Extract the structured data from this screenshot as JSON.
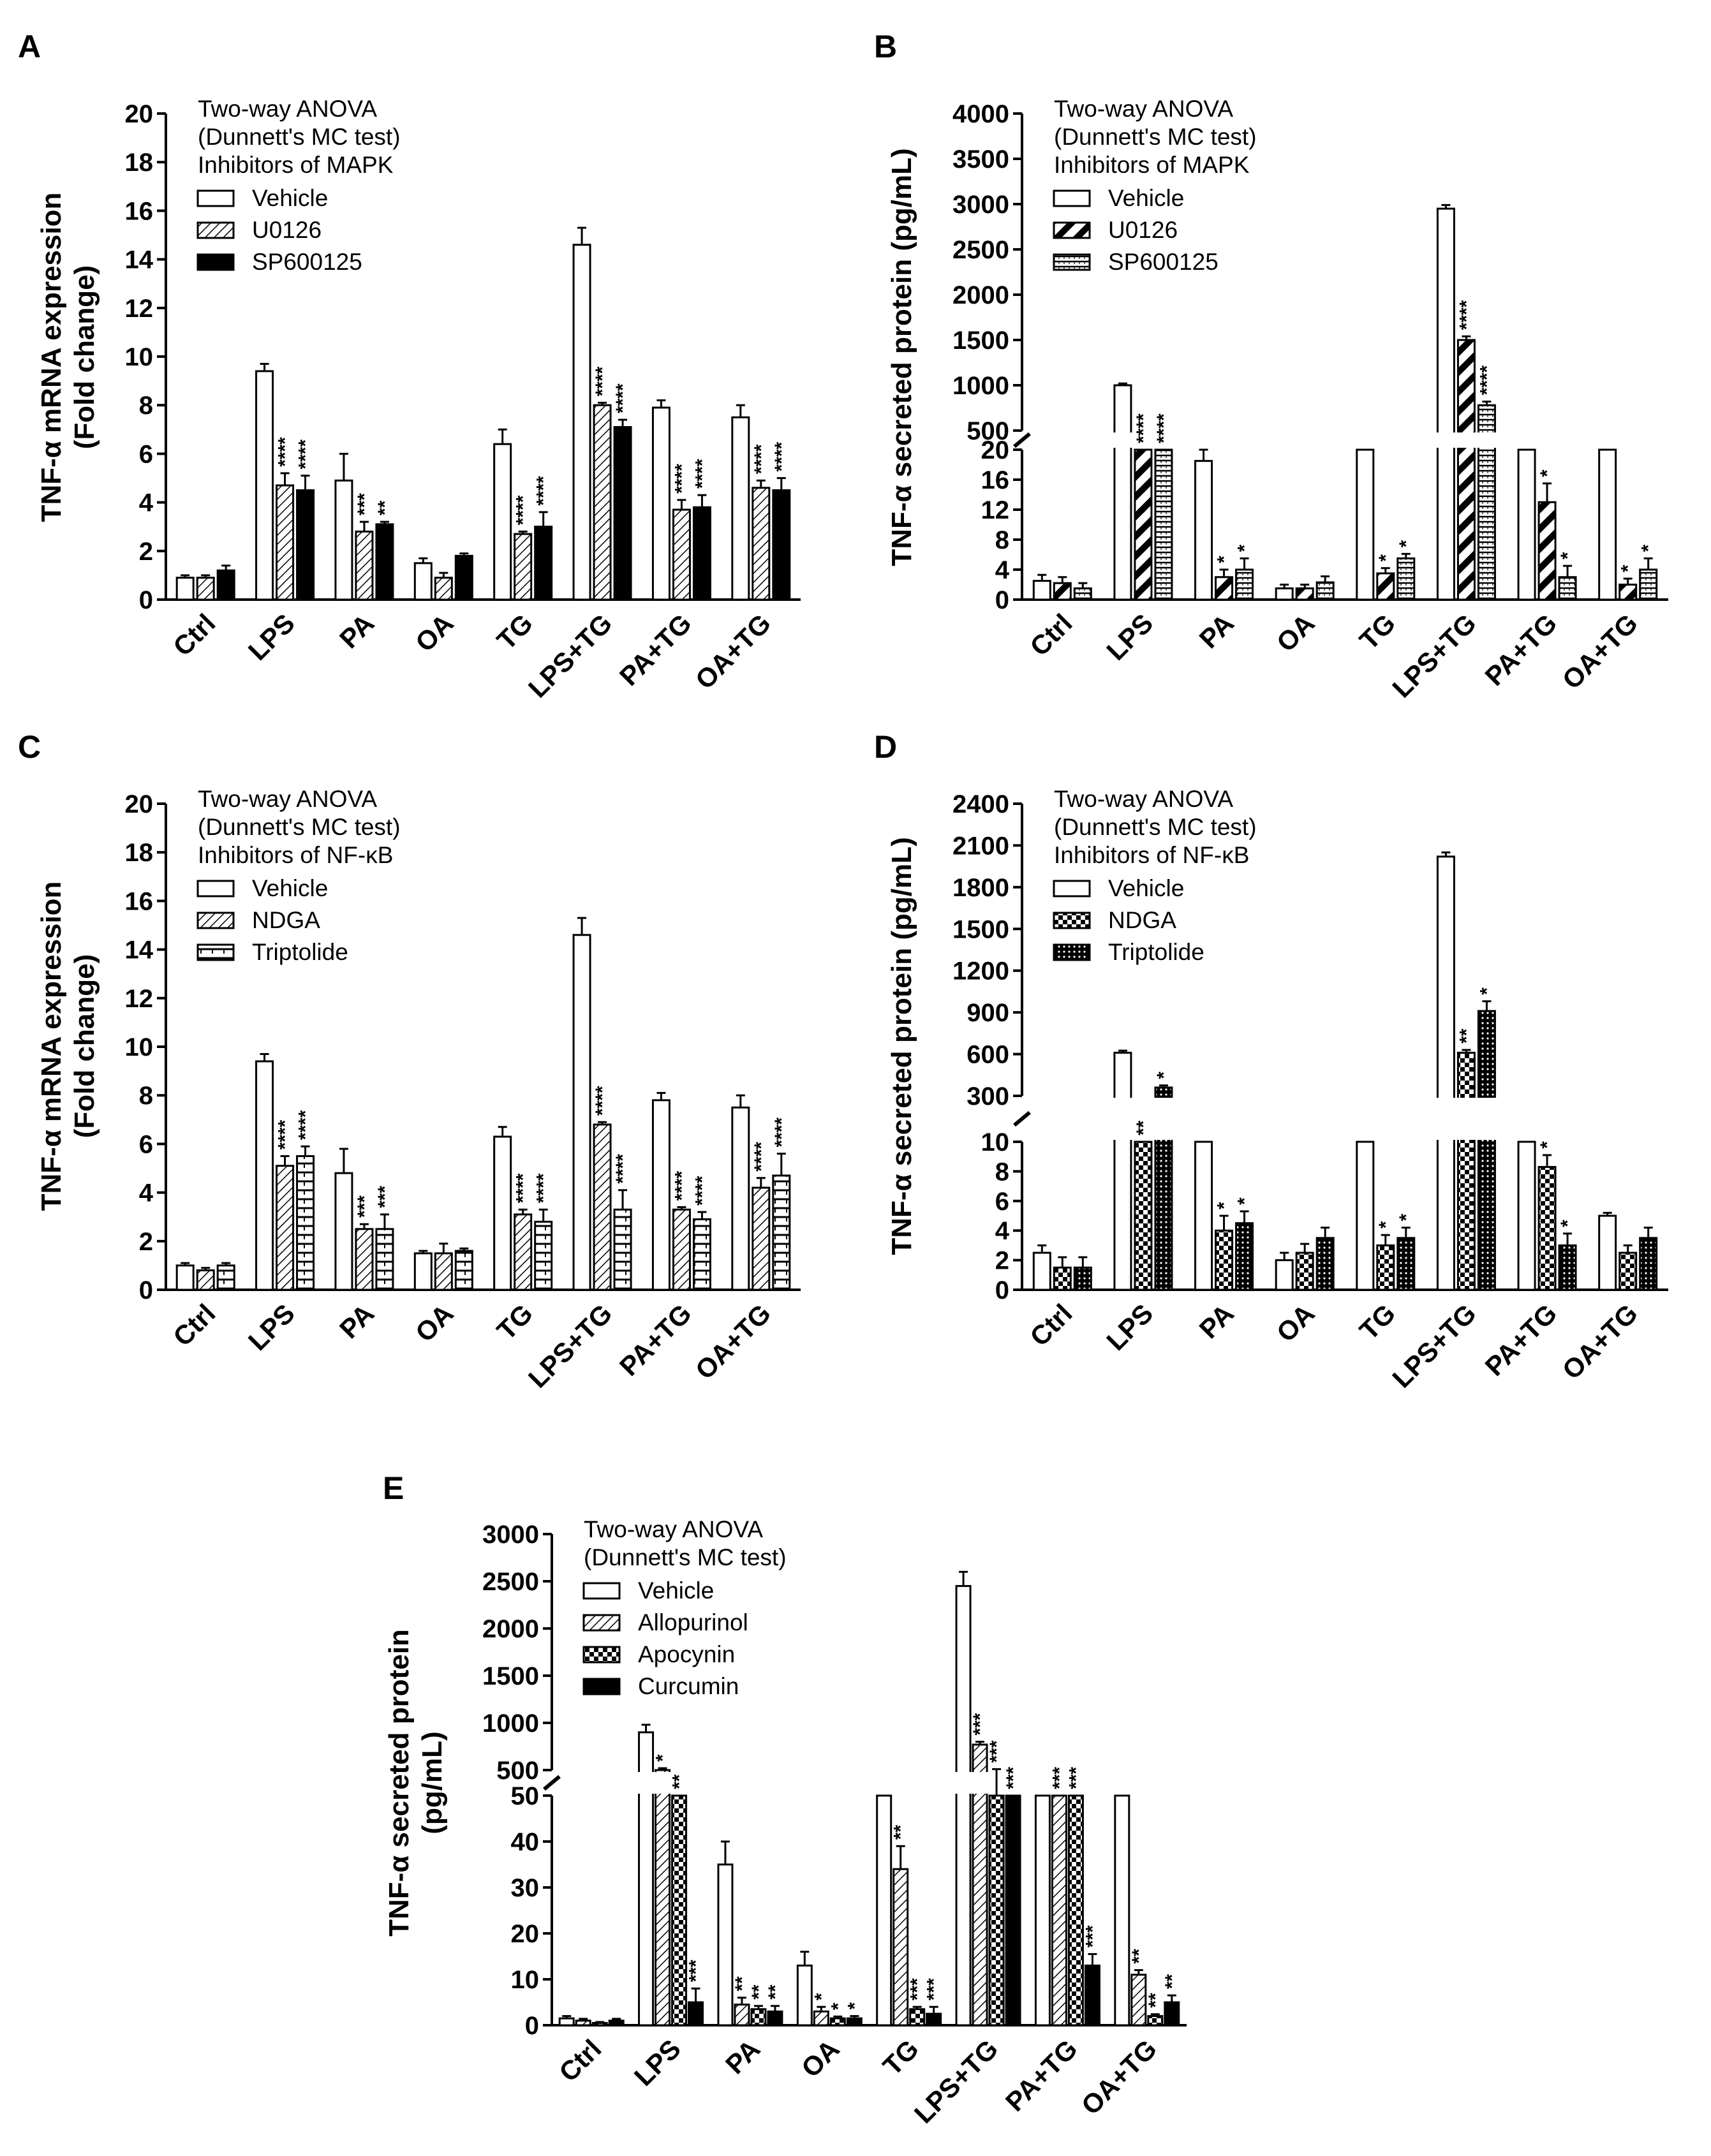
{
  "chart_data": [
    {
      "type": "bar",
      "panel": "A",
      "ylabel_line1": "TNF-α mRNA expression",
      "ylabel_line2": "(Fold change)",
      "categories": [
        "Ctrl",
        "LPS",
        "PA",
        "OA",
        "TG",
        "LPS+TG",
        "PA+TG",
        "OA+TG"
      ],
      "yticks": [
        0,
        2,
        4,
        6,
        8,
        10,
        12,
        14,
        16,
        18,
        20
      ],
      "legend_title": [
        "Two-way ANOVA",
        "(Dunnett's MC test)",
        "Inhibitors of MAPK"
      ],
      "series": [
        {
          "name": "Vehicle",
          "pattern": "white",
          "values": [
            0.9,
            9.4,
            4.9,
            1.5,
            6.4,
            14.6,
            7.9,
            7.5
          ],
          "errors": [
            0.1,
            0.3,
            1.1,
            0.2,
            0.6,
            0.7,
            0.3,
            0.5
          ],
          "stars": [
            "",
            "",
            "",
            "",
            "",
            "",
            "",
            ""
          ]
        },
        {
          "name": "U0126",
          "pattern": "hatch",
          "values": [
            0.9,
            4.7,
            2.8,
            0.9,
            2.7,
            8.0,
            3.7,
            4.6
          ],
          "errors": [
            0.1,
            0.5,
            0.4,
            0.2,
            0.1,
            0.1,
            0.4,
            0.3
          ],
          "stars": [
            "",
            "****",
            "***",
            "",
            "****",
            "****",
            "****",
            "****"
          ]
        },
        {
          "name": "SP600125",
          "pattern": "black",
          "values": [
            1.2,
            4.5,
            3.1,
            1.8,
            3.0,
            7.1,
            3.8,
            4.5
          ],
          "errors": [
            0.2,
            0.6,
            0.1,
            0.1,
            0.6,
            0.3,
            0.5,
            0.5
          ],
          "stars": [
            "",
            "****",
            "**",
            "",
            "****",
            "****",
            "****",
            "****"
          ]
        }
      ]
    },
    {
      "type": "bar",
      "panel": "B",
      "ylabel_line1": "TNF-α secreted protein (pg/mL)",
      "categories": [
        "Ctrl",
        "LPS",
        "PA",
        "OA",
        "TG",
        "LPS+TG",
        "PA+TG",
        "OA+TG"
      ],
      "y_break": {
        "lower_max": 20,
        "upper_min": 500,
        "upper_max": 4000
      },
      "yticks_lower": [
        0,
        4,
        8,
        12,
        16,
        20
      ],
      "yticks_upper": [
        500,
        1000,
        1500,
        2000,
        2500,
        3000,
        3500,
        4000
      ],
      "legend_title": [
        "Two-way ANOVA",
        "(Dunnett's MC test)",
        "Inhibitors of MAPK"
      ],
      "series": [
        {
          "name": "Vehicle",
          "pattern": "white",
          "values": [
            2.5,
            1000,
            18.5,
            1.5,
            22,
            2950,
            22,
            22
          ],
          "errors": [
            0.8,
            20,
            1.5,
            0.5,
            0.5,
            40,
            0.5,
            0.5
          ],
          "stars": [
            "",
            "",
            "",
            "",
            "",
            "",
            "",
            ""
          ]
        },
        {
          "name": "U0126",
          "pattern": "diag",
          "values": [
            2.2,
            350,
            3.0,
            1.5,
            3.5,
            1500,
            13,
            2.0
          ],
          "errors": [
            0.8,
            10,
            1.0,
            0.5,
            0.7,
            40,
            2.5,
            0.8
          ],
          "stars": [
            "",
            "****",
            "*",
            "",
            "*",
            "****",
            "*",
            "*"
          ]
        },
        {
          "name": "SP600125",
          "pattern": "hlines",
          "values": [
            1.5,
            250,
            4.0,
            2.3,
            5.5,
            780,
            3.0,
            4.0
          ],
          "errors": [
            0.7,
            10,
            1.5,
            0.8,
            0.6,
            40,
            1.5,
            1.5
          ],
          "stars": [
            "",
            "****",
            "*",
            "",
            "*",
            "****",
            "*",
            "*"
          ]
        }
      ]
    },
    {
      "type": "bar",
      "panel": "C",
      "ylabel_line1": "TNF-α mRNA expression",
      "ylabel_line2": "(Fold change)",
      "categories": [
        "Ctrl",
        "LPS",
        "PA",
        "OA",
        "TG",
        "LPS+TG",
        "PA+TG",
        "OA+TG"
      ],
      "yticks": [
        0,
        2,
        4,
        6,
        8,
        10,
        12,
        14,
        16,
        18,
        20
      ],
      "legend_title": [
        "Two-way ANOVA",
        "(Dunnett's MC test)",
        "Inhibitors of NF-κB"
      ],
      "series": [
        {
          "name": "Vehicle",
          "pattern": "white",
          "values": [
            1.0,
            9.4,
            4.8,
            1.5,
            6.3,
            14.6,
            7.8,
            7.5
          ],
          "errors": [
            0.1,
            0.3,
            1.0,
            0.1,
            0.4,
            0.7,
            0.3,
            0.5
          ],
          "stars": [
            "",
            "",
            "",
            "",
            "",
            "",
            "",
            ""
          ]
        },
        {
          "name": "NDGA",
          "pattern": "hatch",
          "values": [
            0.8,
            5.1,
            2.5,
            1.5,
            3.1,
            6.8,
            3.3,
            4.2
          ],
          "errors": [
            0.1,
            0.4,
            0.2,
            0.4,
            0.2,
            0.1,
            0.1,
            0.4
          ],
          "stars": [
            "",
            "****",
            "***",
            "",
            "****",
            "****",
            "****",
            "****"
          ]
        },
        {
          "name": "Triptolide",
          "pattern": "dashes",
          "values": [
            1.0,
            5.5,
            2.5,
            1.6,
            2.8,
            3.3,
            2.9,
            4.7
          ],
          "errors": [
            0.1,
            0.4,
            0.6,
            0.1,
            0.5,
            0.8,
            0.3,
            0.9
          ],
          "stars": [
            "",
            "****",
            "***",
            "",
            "****",
            "****",
            "****",
            "****"
          ]
        }
      ]
    },
    {
      "type": "bar",
      "panel": "D",
      "ylabel_line1": "TNF-α secreted protein (pg/mL)",
      "categories": [
        "Ctrl",
        "LPS",
        "PA",
        "OA",
        "TG",
        "LPS+TG",
        "PA+TG",
        "OA+TG"
      ],
      "y_break": {
        "lower_max": 10,
        "upper_min": 300,
        "upper_max": 2400
      },
      "yticks_lower": [
        0,
        2,
        4,
        6,
        8,
        10
      ],
      "yticks_upper": [
        300,
        600,
        900,
        1200,
        1500,
        1800,
        2100,
        2400
      ],
      "legend_title": [
        "Two-way ANOVA",
        "(Dunnett's MC test)",
        "Inhibitors of NF-κB"
      ],
      "series": [
        {
          "name": "Vehicle",
          "pattern": "white",
          "values": [
            2.5,
            610,
            11,
            2.0,
            11,
            2020,
            200,
            5.0
          ],
          "errors": [
            0.5,
            15,
            0.2,
            0.5,
            0.2,
            30,
            10,
            0.2
          ],
          "stars": [
            "",
            "",
            "",
            "",
            "",
            "",
            "",
            ""
          ]
        },
        {
          "name": "NDGA",
          "pattern": "grid",
          "values": [
            1.5,
            200,
            4.0,
            2.5,
            3.0,
            610,
            8.3,
            2.5
          ],
          "errors": [
            0.7,
            10,
            1.0,
            0.6,
            0.7,
            20,
            0.8,
            0.5
          ],
          "stars": [
            "",
            "**",
            "*",
            "",
            "*",
            "**",
            "*",
            ""
          ]
        },
        {
          "name": "Triptolide",
          "pattern": "dots",
          "values": [
            1.5,
            360,
            4.5,
            3.5,
            3.5,
            910,
            3.0,
            3.5
          ],
          "errors": [
            0.7,
            15,
            0.8,
            0.7,
            0.7,
            70,
            0.8,
            0.7
          ],
          "stars": [
            "",
            "*",
            "*",
            "",
            "*",
            "*",
            "*",
            ""
          ]
        }
      ]
    },
    {
      "type": "bar",
      "panel": "E",
      "ylabel_line1": "TNF-α secreted protein",
      "ylabel_line2": "(pg/mL)",
      "categories": [
        "Ctrl",
        "LPS",
        "PA",
        "OA",
        "TG",
        "LPS+TG",
        "PA+TG",
        "OA+TG"
      ],
      "y_break": {
        "lower_max": 50,
        "upper_min": 500,
        "upper_max": 3000
      },
      "yticks_lower": [
        0,
        10,
        20,
        30,
        40,
        50
      ],
      "yticks_upper": [
        500,
        1000,
        1500,
        2000,
        2500,
        3000
      ],
      "legend_title": [
        "Two-way ANOVA",
        "(Dunnett's MC test)"
      ],
      "series": [
        {
          "name": "Vehicle",
          "pattern": "white",
          "values": [
            1.5,
            900,
            35,
            13,
            52,
            2450,
            280,
            52
          ],
          "errors": [
            0.5,
            80,
            5,
            3,
            0.5,
            150,
            40,
            0.5
          ],
          "stars": [
            "",
            "",
            "",
            "",
            "",
            "",
            "",
            ""
          ]
        },
        {
          "name": "Allopurinol",
          "pattern": "hatch",
          "values": [
            1.0,
            500,
            4.5,
            3,
            34,
            770,
            51,
            11
          ],
          "errors": [
            0.4,
            20,
            1.5,
            1,
            5,
            30,
            0.5,
            1
          ],
          "stars": [
            "",
            "*",
            "**",
            "*",
            "**",
            "***",
            "***",
            "**"
          ]
        },
        {
          "name": "Apocynin",
          "pattern": "grid",
          "values": [
            0.5,
            400,
            3.5,
            1.5,
            3.5,
            450,
            52,
            2
          ],
          "errors": [
            0.2,
            50,
            0.7,
            0.4,
            0.5,
            60,
            0.5,
            0.4
          ],
          "stars": [
            "",
            "**",
            "**",
            "*",
            "***",
            "***",
            "***",
            "**"
          ]
        },
        {
          "name": "Curcumin",
          "pattern": "black",
          "values": [
            1.0,
            5,
            3.0,
            1.5,
            2.5,
            52,
            13,
            5
          ],
          "errors": [
            0.4,
            3,
            1.2,
            0.5,
            1.5,
            0.5,
            2.5,
            1.5
          ],
          "stars": [
            "",
            "***",
            "**",
            "*",
            "***",
            "***",
            "***",
            "**"
          ]
        }
      ]
    }
  ]
}
